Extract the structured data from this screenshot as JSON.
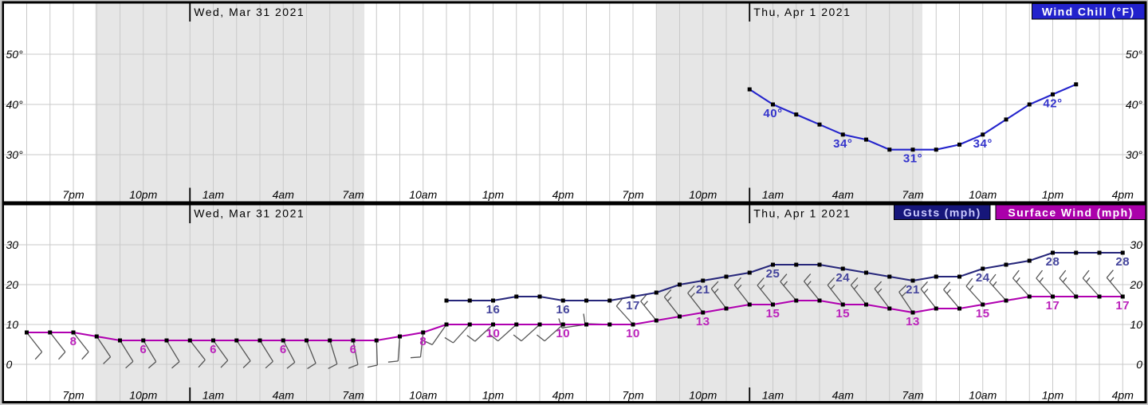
{
  "chart": {
    "kind": "hourly-weather-graph",
    "background": "#ffffff",
    "frame_color": "#000000",
    "outer_margin_color": "#cccccc",
    "night_shade_color": "#e6e6e6",
    "gridline_color": "#c9c9c9"
  },
  "x_axis": {
    "hours_per_gridline": 1,
    "time_labels": [
      {
        "t": 3,
        "text": "7pm"
      },
      {
        "t": 6,
        "text": "10pm"
      },
      {
        "t": 9,
        "text": "1am"
      },
      {
        "t": 12,
        "text": "4am"
      },
      {
        "t": 15,
        "text": "7am"
      },
      {
        "t": 18,
        "text": "10am"
      },
      {
        "t": 21,
        "text": "1pm"
      },
      {
        "t": 24,
        "text": "4pm"
      },
      {
        "t": 27,
        "text": "7pm"
      },
      {
        "t": 30,
        "text": "10pm"
      },
      {
        "t": 33,
        "text": "1am"
      },
      {
        "t": 36,
        "text": "4am"
      },
      {
        "t": 39,
        "text": "7am"
      },
      {
        "t": 42,
        "text": "10am"
      },
      {
        "t": 45,
        "text": "1pm"
      },
      {
        "t": 48,
        "text": "4pm"
      }
    ],
    "date_dividers": [
      {
        "t": 8,
        "text": "Wed, Mar 31 2021"
      },
      {
        "t": 32,
        "text": "Thu, Apr 1 2021"
      }
    ],
    "night_spans": [
      {
        "from_t": 3.94,
        "to_t": 15.48
      },
      {
        "from_t": 28.01,
        "to_t": 39.41
      }
    ]
  },
  "panels": [
    {
      "id": "wind_chill",
      "y_gridlines": [
        {
          "v": 50,
          "label": "50°"
        },
        {
          "v": 40,
          "label": "40°"
        },
        {
          "v": 30,
          "label": "30°"
        }
      ],
      "legend": [
        {
          "text": "Wind Chill (°F)",
          "bg": "#2222cc",
          "fg": "#ffffff"
        }
      ]
    },
    {
      "id": "wind",
      "y_gridlines": [
        {
          "v": 30,
          "label": "30"
        },
        {
          "v": 20,
          "label": "20"
        },
        {
          "v": 10,
          "label": "10"
        },
        {
          "v": 0,
          "label": "0"
        }
      ],
      "legend": [
        {
          "text": "Gusts (mph)",
          "bg": "#16167a",
          "fg": "#ccccff"
        },
        {
          "text": "Surface Wind (mph)",
          "bg": "#aa00aa",
          "fg": "#ffffff"
        }
      ]
    }
  ],
  "chart_data": [
    {
      "type": "line",
      "panel": "wind_chill",
      "title": "Wind Chill (°F)",
      "x_mode": "hourly",
      "ylim": [
        21,
        60
      ],
      "series": [
        {
          "name": "Wind Chill",
          "unit": "°F",
          "color": "#2424cc",
          "label_color": "#3434cc",
          "label_suffix": "°",
          "marker": "square",
          "start_t": 32,
          "values": [
            43,
            40,
            38,
            36,
            34,
            33,
            31,
            31,
            31,
            32,
            34,
            37,
            40,
            42,
            44
          ]
        }
      ]
    },
    {
      "type": "line",
      "panel": "wind",
      "title": "Gusts / Surface Wind (mph)",
      "x_mode": "hourly",
      "ylim": [
        -9,
        40
      ],
      "series": [
        {
          "name": "Gusts",
          "unit": "mph",
          "color": "#26267a",
          "label_color": "#44449c",
          "label_suffix": "",
          "marker": "square",
          "start_t": 19,
          "values": [
            16,
            16,
            16,
            17,
            17,
            16,
            16,
            16,
            17,
            18,
            20,
            21,
            22,
            23,
            25,
            25,
            25,
            24,
            23,
            22,
            21,
            22,
            22,
            24,
            25,
            26,
            28,
            28,
            28,
            28
          ]
        },
        {
          "name": "Surface Wind",
          "unit": "mph",
          "color": "#b000b0",
          "label_color": "#bb22bb",
          "label_suffix": "",
          "marker": "square",
          "start_t": 1,
          "values": [
            8,
            8,
            8,
            7,
            6,
            6,
            6,
            6,
            6,
            6,
            6,
            6,
            6,
            6,
            6,
            6,
            7,
            8,
            10,
            10,
            10,
            10,
            10,
            10,
            10,
            10,
            10,
            11,
            12,
            13,
            14,
            15,
            15,
            16,
            16,
            15,
            15,
            14,
            13,
            14,
            14,
            15,
            16,
            17,
            17,
            17,
            17,
            17
          ]
        }
      ],
      "wind_barbs": {
        "color": "#555555",
        "attached_to": "Surface Wind",
        "angles_deg_compass": [
          {
            "t": 1,
            "deg": 142
          },
          {
            "t": 2,
            "deg": 142
          },
          {
            "t": 3,
            "deg": 142
          },
          {
            "t": 4,
            "deg": 146
          },
          {
            "t": 5,
            "deg": 148
          },
          {
            "t": 6,
            "deg": 149
          },
          {
            "t": 7,
            "deg": 149
          },
          {
            "t": 8,
            "deg": 142
          },
          {
            "t": 9,
            "deg": 144
          },
          {
            "t": 10,
            "deg": 146
          },
          {
            "t": 11,
            "deg": 148
          },
          {
            "t": 12,
            "deg": 152
          },
          {
            "t": 13,
            "deg": 158
          },
          {
            "t": 14,
            "deg": 163
          },
          {
            "t": 15,
            "deg": 169
          },
          {
            "t": 16,
            "deg": 178
          },
          {
            "t": 17,
            "deg": 184
          },
          {
            "t": 18,
            "deg": 186
          },
          {
            "t": 19,
            "deg": 215
          },
          {
            "t": 20,
            "deg": 222
          },
          {
            "t": 21,
            "deg": 227
          },
          {
            "t": 22,
            "deg": 228
          },
          {
            "t": 23,
            "deg": 228
          },
          {
            "t": 24,
            "deg": 228
          },
          {
            "t": 25,
            "deg": 262
          },
          {
            "t": 26,
            "deg": 272
          },
          {
            "t": 27,
            "deg": 318
          },
          {
            "t": 28,
            "deg": 321
          },
          {
            "t": 29,
            "deg": 322
          },
          {
            "t": 30,
            "deg": 322
          },
          {
            "t": 31,
            "deg": 323
          },
          {
            "t": 32,
            "deg": 322
          },
          {
            "t": 33,
            "deg": 321
          },
          {
            "t": 34,
            "deg": 320
          },
          {
            "t": 35,
            "deg": 321
          },
          {
            "t": 36,
            "deg": 322
          },
          {
            "t": 37,
            "deg": 322
          },
          {
            "t": 38,
            "deg": 323
          },
          {
            "t": 39,
            "deg": 326
          },
          {
            "t": 40,
            "deg": 322
          },
          {
            "t": 41,
            "deg": 320
          },
          {
            "t": 42,
            "deg": 318
          },
          {
            "t": 43,
            "deg": 318
          },
          {
            "t": 44,
            "deg": 318
          },
          {
            "t": 45,
            "deg": 318
          },
          {
            "t": 46,
            "deg": 318
          },
          {
            "t": 47,
            "deg": 318
          },
          {
            "t": 48,
            "deg": 320
          }
        ]
      }
    }
  ]
}
